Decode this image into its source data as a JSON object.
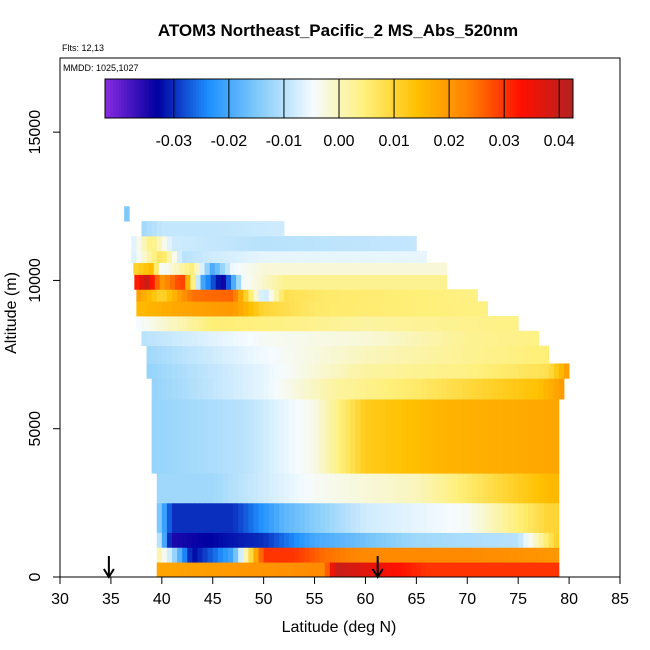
{
  "chart_data": {
    "type": "heatmap",
    "title": "ATOM3 Northeast_Pacific_2 MS_Abs_520nm",
    "annotations": [
      "Flts: 12,13",
      "MMDD: 1025,1027"
    ],
    "xlabel": "Latitude (deg N)",
    "ylabel": "Altitude (m)",
    "xlim": [
      30,
      85
    ],
    "ylim": [
      0,
      17500
    ],
    "xticks": [
      30,
      35,
      40,
      45,
      50,
      55,
      60,
      65,
      70,
      75,
      80,
      85
    ],
    "yticks": [
      0,
      5000,
      10000,
      15000
    ],
    "colorbar": {
      "min": -0.0425,
      "max": 0.0425,
      "ticks": [
        -0.03,
        -0.02,
        -0.01,
        0.0,
        0.01,
        0.02,
        0.03,
        0.04
      ],
      "tick_labels": [
        "-0.03",
        "-0.02",
        "-0.01",
        "0.00",
        "0.01",
        "0.02",
        "0.03",
        "0.04"
      ],
      "colors": [
        "#8a2be2",
        "#0000a0",
        "#1e90ff",
        "#87cefa",
        "#f5fbff",
        "#fff07a",
        "#ffc000",
        "#ff7f00",
        "#ff1000",
        "#b22222"
      ]
    },
    "arrows_lat": [
      34.8,
      61.2
    ],
    "layers": [
      {
        "alt": [
          0,
          500
        ],
        "lat": [
          39.5,
          79
        ],
        "cols": [
          [
            39.5,
            0.018
          ],
          [
            56,
            0.022
          ],
          [
            57,
            0.04
          ],
          [
            66,
            0.03
          ],
          [
            79,
            0.03
          ]
        ]
      },
      {
        "alt": [
          500,
          1000
        ],
        "lat": [
          39.5,
          79
        ],
        "cols": [
          [
            39.5,
            0.003
          ],
          [
            41,
            -0.01
          ],
          [
            43,
            -0.033
          ],
          [
            47,
            -0.02
          ],
          [
            50,
            0.03
          ],
          [
            53,
            0.03
          ],
          [
            56,
            0.025
          ],
          [
            60,
            0.022
          ],
          [
            70,
            0.022
          ],
          [
            79,
            0.02
          ]
        ]
      },
      {
        "alt": [
          1000,
          1500
        ],
        "lat": [
          39.5,
          79
        ],
        "cols": [
          [
            39.5,
            -0.005
          ],
          [
            41,
            -0.035
          ],
          [
            50,
            -0.03
          ],
          [
            55,
            -0.02
          ],
          [
            65,
            -0.012
          ],
          [
            75,
            -0.01
          ],
          [
            79,
            0.012
          ]
        ]
      },
      {
        "alt": [
          1500,
          2500
        ],
        "lat": [
          39.5,
          79
        ],
        "cols": [
          [
            39.5,
            -0.012
          ],
          [
            41,
            -0.03
          ],
          [
            47,
            -0.03
          ],
          [
            52,
            -0.018
          ],
          [
            60,
            -0.008
          ],
          [
            70,
            -0.004
          ],
          [
            78,
            0.01
          ]
        ]
      },
      {
        "alt": [
          2500,
          3500
        ],
        "lat": [
          39.5,
          79
        ],
        "cols": [
          [
            39.5,
            -0.012
          ],
          [
            45,
            -0.012
          ],
          [
            55,
            -0.004
          ],
          [
            65,
            0.0
          ],
          [
            78,
            0.015
          ]
        ]
      },
      {
        "alt": [
          3500,
          6000
        ],
        "lat": [
          39,
          79
        ],
        "cols": [
          [
            39,
            -0.013
          ],
          [
            48,
            -0.01
          ],
          [
            55,
            -0.003
          ],
          [
            60,
            0.012
          ],
          [
            68,
            0.016
          ],
          [
            79,
            0.018
          ]
        ]
      },
      {
        "alt": [
          6000,
          6700
        ],
        "lat": [
          39,
          79.5
        ],
        "cols": [
          [
            39,
            -0.013
          ],
          [
            50,
            -0.006
          ],
          [
            57,
            0.002
          ],
          [
            65,
            0.006
          ],
          [
            77,
            0.014
          ],
          [
            79.5,
            0.02
          ]
        ]
      },
      {
        "alt": [
          6700,
          7200
        ],
        "lat": [
          38.5,
          80
        ],
        "cols": [
          [
            38.5,
            -0.013
          ],
          [
            50,
            -0.006
          ],
          [
            60,
            0.002
          ],
          [
            70,
            0.004
          ],
          [
            78,
            0.008
          ],
          [
            80,
            0.02
          ]
        ]
      },
      {
        "alt": [
          7200,
          7800
        ],
        "lat": [
          38.5,
          78
        ],
        "cols": [
          [
            38.5,
            -0.012
          ],
          [
            50,
            -0.005
          ],
          [
            60,
            0.0
          ],
          [
            70,
            0.003
          ],
          [
            78,
            0.005
          ]
        ]
      },
      {
        "alt": [
          7800,
          8300
        ],
        "lat": [
          38,
          77
        ],
        "cols": [
          [
            38,
            -0.01
          ],
          [
            50,
            -0.004
          ],
          [
            60,
            -0.002
          ],
          [
            70,
            0.003
          ],
          [
            77,
            0.004
          ]
        ]
      },
      {
        "alt": [
          8300,
          8800
        ],
        "lat": [
          37.5,
          75
        ],
        "cols": [
          [
            37.5,
            -0.005
          ],
          [
            45,
            0.005
          ],
          [
            52,
            0.004
          ],
          [
            60,
            0.002
          ],
          [
            75,
            0.004
          ]
        ]
      },
      {
        "alt": [
          8800,
          9300
        ],
        "lat": [
          37.5,
          72
        ],
        "cols": [
          [
            37.5,
            0.015
          ],
          [
            42,
            0.018
          ],
          [
            47,
            0.02
          ],
          [
            50,
            0.01
          ],
          [
            55,
            0.006
          ],
          [
            72,
            0.004
          ]
        ]
      },
      {
        "alt": [
          9300,
          9700
        ],
        "lat": [
          37.5,
          71
        ],
        "cols": [
          [
            37.5,
            0.02
          ],
          [
            40,
            0.01
          ],
          [
            43,
            0.025
          ],
          [
            47,
            0.026
          ],
          [
            50,
            -0.01
          ],
          [
            52,
            0.008
          ],
          [
            56,
            0.006
          ],
          [
            71,
            0.004
          ]
        ]
      },
      {
        "alt": [
          9700,
          10200
        ],
        "lat": [
          37.3,
          68
        ],
        "cols": [
          [
            37.3,
            0.03
          ],
          [
            38.5,
            0.04
          ],
          [
            40,
            0.02
          ],
          [
            42,
            0.03
          ],
          [
            44,
            -0.02
          ],
          [
            46,
            -0.035
          ],
          [
            48,
            -0.005
          ],
          [
            52,
            0.003
          ],
          [
            68,
            0.003
          ]
        ]
      },
      {
        "alt": [
          10200,
          10600
        ],
        "lat": [
          37.2,
          68
        ],
        "cols": [
          [
            37.2,
            0.01
          ],
          [
            39,
            0.015
          ],
          [
            40,
            -0.005
          ],
          [
            43,
            0.005
          ],
          [
            45,
            -0.02
          ],
          [
            47,
            -0.005
          ],
          [
            50,
            -0.002
          ],
          [
            68,
            -0.002
          ]
        ]
      },
      {
        "alt": [
          10600,
          11000
        ],
        "lat": [
          37,
          66
        ],
        "cols": [
          [
            37,
            -0.008
          ],
          [
            40,
            0.008
          ],
          [
            42,
            -0.01
          ],
          [
            45,
            -0.008
          ],
          [
            50,
            -0.006
          ],
          [
            66,
            -0.006
          ]
        ]
      },
      {
        "alt": [
          11000,
          11500
        ],
        "lat": [
          37,
          65
        ],
        "cols": [
          [
            37,
            -0.008
          ],
          [
            39,
            0.005
          ],
          [
            41,
            -0.008
          ],
          [
            50,
            -0.01
          ],
          [
            65,
            -0.009
          ]
        ]
      },
      {
        "alt": [
          11500,
          12000
        ],
        "lat": [
          38,
          52
        ],
        "cols": [
          [
            38,
            -0.012
          ],
          [
            40,
            -0.009
          ],
          [
            45,
            -0.009
          ],
          [
            52,
            -0.008
          ]
        ]
      },
      {
        "alt": [
          12000,
          12500
        ],
        "lat": [
          36.3,
          36.8
        ],
        "cols": [
          [
            36.3,
            -0.015
          ],
          [
            36.8,
            -0.015
          ]
        ]
      }
    ]
  }
}
